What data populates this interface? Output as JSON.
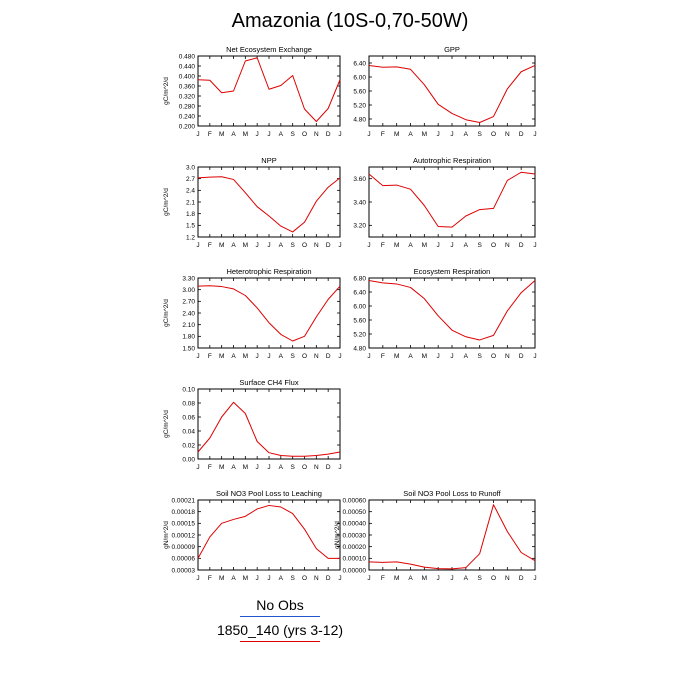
{
  "title": "Amazonia (10S-0,70-50W)",
  "colors": {
    "series": "#dd0000",
    "obs": "#2255cc",
    "axis": "#000000"
  },
  "chart_data": [
    {
      "type": "line",
      "title": "Net Ecosystem Exchange",
      "ylabel": "gC/m^2/d",
      "x": [
        "J",
        "F",
        "M",
        "A",
        "M",
        "J",
        "J",
        "A",
        "S",
        "O",
        "N",
        "D",
        "J"
      ],
      "ylim": [
        0.2,
        0.48
      ],
      "yticks": [
        "0.200",
        "0.240",
        "0.280",
        "0.320",
        "0.360",
        "0.400",
        "0.440",
        "0.480"
      ],
      "series": [
        {
          "values": [
            0.385,
            0.383,
            0.333,
            0.34,
            0.46,
            0.473,
            0.347,
            0.362,
            0.402,
            0.268,
            0.218,
            0.27,
            0.385
          ]
        }
      ]
    },
    {
      "type": "line",
      "title": "GPP",
      "ylabel": "",
      "x": [
        "J",
        "F",
        "M",
        "A",
        "M",
        "J",
        "J",
        "A",
        "S",
        "O",
        "N",
        "D",
        "J"
      ],
      "ylim": [
        4.6,
        6.6
      ],
      "yticks": [
        "4.80",
        "5.20",
        "5.60",
        "6.00",
        "6.40"
      ],
      "series": [
        {
          "values": [
            6.33,
            6.28,
            6.29,
            6.22,
            5.78,
            5.22,
            4.96,
            4.78,
            4.7,
            4.87,
            5.66,
            6.15,
            6.33
          ]
        }
      ]
    },
    {
      "type": "line",
      "title": "NPP",
      "ylabel": "gC/m^2/d",
      "x": [
        "J",
        "F",
        "M",
        "A",
        "M",
        "J",
        "J",
        "A",
        "S",
        "O",
        "N",
        "D",
        "J"
      ],
      "ylim": [
        1.2,
        3.0
      ],
      "yticks": [
        "1.2",
        "1.5",
        "1.8",
        "2.1",
        "2.4",
        "2.7",
        "3.0"
      ],
      "series": [
        {
          "values": [
            2.72,
            2.74,
            2.75,
            2.68,
            2.34,
            1.98,
            1.74,
            1.48,
            1.33,
            1.58,
            2.12,
            2.48,
            2.72
          ]
        }
      ]
    },
    {
      "type": "line",
      "title": "Autotrophic Respiration",
      "ylabel": "",
      "x": [
        "J",
        "F",
        "M",
        "A",
        "M",
        "J",
        "J",
        "A",
        "S",
        "O",
        "N",
        "D",
        "J"
      ],
      "ylim": [
        3.1,
        3.7
      ],
      "yticks": [
        "3.20",
        "3.40",
        "3.60"
      ],
      "series": [
        {
          "values": [
            3.64,
            3.54,
            3.545,
            3.51,
            3.37,
            3.19,
            3.185,
            3.28,
            3.335,
            3.345,
            3.585,
            3.655,
            3.64
          ]
        }
      ]
    },
    {
      "type": "line",
      "title": "Heterotrophic Respiration",
      "ylabel": "gC/m^2/d",
      "x": [
        "J",
        "F",
        "M",
        "A",
        "M",
        "J",
        "J",
        "A",
        "S",
        "O",
        "N",
        "D",
        "J"
      ],
      "ylim": [
        1.5,
        3.3
      ],
      "yticks": [
        "1.50",
        "1.80",
        "2.10",
        "2.40",
        "2.70",
        "3.00",
        "3.30"
      ],
      "series": [
        {
          "values": [
            3.09,
            3.1,
            3.08,
            3.02,
            2.85,
            2.53,
            2.15,
            1.85,
            1.68,
            1.8,
            2.3,
            2.75,
            3.09
          ]
        }
      ]
    },
    {
      "type": "line",
      "title": "Ecosystem Respiration",
      "ylabel": "",
      "x": [
        "J",
        "F",
        "M",
        "A",
        "M",
        "J",
        "J",
        "A",
        "S",
        "O",
        "N",
        "D",
        "J"
      ],
      "ylim": [
        4.8,
        6.8
      ],
      "yticks": [
        "4.80",
        "5.20",
        "5.60",
        "6.00",
        "6.40",
        "6.80"
      ],
      "series": [
        {
          "values": [
            6.73,
            6.66,
            6.63,
            6.53,
            6.21,
            5.72,
            5.31,
            5.12,
            5.03,
            5.16,
            5.86,
            6.38,
            6.73
          ]
        }
      ]
    },
    {
      "type": "line",
      "title": "Surface CH4 Flux",
      "ylabel": "gC/m^2/d",
      "x": [
        "J",
        "F",
        "M",
        "A",
        "M",
        "J",
        "J",
        "A",
        "S",
        "O",
        "N",
        "D",
        "J"
      ],
      "ylim": [
        0,
        0.1
      ],
      "yticks": [
        "0.00",
        "0.02",
        "0.04",
        "0.06",
        "0.08",
        "0.10"
      ],
      "series": [
        {
          "values": [
            0.01,
            0.03,
            0.06,
            0.081,
            0.065,
            0.025,
            0.009,
            0.005,
            0.004,
            0.004,
            0.005,
            0.007,
            0.01
          ]
        }
      ]
    },
    {
      "type": "line",
      "title": "Soil NO3 Pool Loss to Leaching",
      "ylabel": "gN/m^2/d",
      "x": [
        "J",
        "F",
        "M",
        "A",
        "M",
        "J",
        "J",
        "A",
        "S",
        "O",
        "N",
        "D",
        "J"
      ],
      "ylim": [
        3e-05,
        0.00021
      ],
      "yticks": [
        "0.00003",
        "0.00006",
        "0.00009",
        "0.00012",
        "0.00015",
        "0.00018",
        "0.00021"
      ],
      "series": [
        {
          "values": [
            6e-05,
            0.000115,
            0.00015,
            0.00016,
            0.000168,
            0.000187,
            0.000196,
            0.000192,
            0.000175,
            0.000135,
            8.5e-05,
            6e-05,
            6e-05
          ]
        }
      ]
    },
    {
      "type": "line",
      "title": "Soil NO3 Pool Loss to Runoff",
      "ylabel": "gN/m^2/d",
      "x": [
        "J",
        "F",
        "M",
        "A",
        "M",
        "J",
        "J",
        "A",
        "S",
        "O",
        "N",
        "D",
        "J"
      ],
      "ylim": [
        0,
        0.0006
      ],
      "yticks": [
        "0.00000",
        "0.00010",
        "0.00020",
        "0.00030",
        "0.00040",
        "0.00050",
        "0.00060"
      ],
      "series": [
        {
          "values": [
            7e-05,
            6.5e-05,
            7e-05,
            5e-05,
            2.5e-05,
            1.2e-05,
            1e-05,
            2e-05,
            0.00014,
            0.00056,
            0.00033,
            0.00015,
            8e-05
          ]
        }
      ]
    }
  ],
  "legend": [
    {
      "label": "No Obs",
      "color": "#2255cc"
    },
    {
      "label": "1850_140 (yrs 3-12)",
      "color": "#dd0000"
    }
  ]
}
